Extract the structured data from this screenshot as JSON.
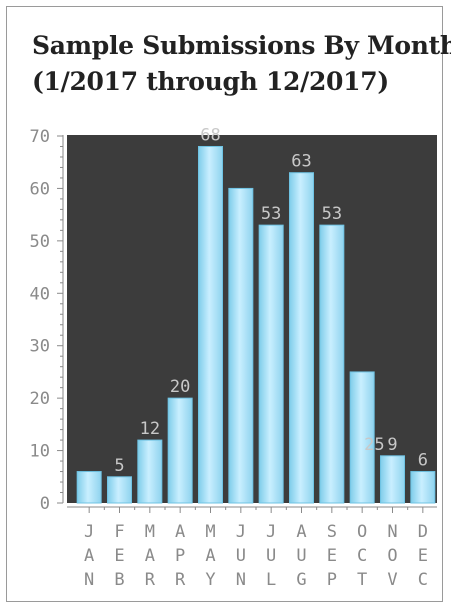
{
  "chart_data": {
    "type": "bar",
    "title_line1": "Sample Submissions By Month",
    "title_line2": "(1/2017 through 12/2017)",
    "categories": [
      "JAN",
      "FEB",
      "MAR",
      "APR",
      "MAY",
      "JUN",
      "JUL",
      "AUG",
      "SEP",
      "OCT",
      "NOV",
      "DEC"
    ],
    "values": [
      6,
      5,
      12,
      20,
      68,
      60,
      53,
      63,
      53,
      25,
      9,
      6
    ],
    "data_labels": [
      "",
      "5",
      "12",
      "20",
      "68",
      "",
      "53",
      "63",
      "53",
      "25",
      "9",
      "6"
    ],
    "yticks": [
      0,
      10,
      20,
      30,
      40,
      50,
      60,
      70
    ],
    "ylim": [
      0,
      70
    ],
    "grid": false,
    "legend": "none",
    "colors": {
      "plot_background": "#3c3c3c",
      "bar_fill": "#a9dff2",
      "bar_edge": "#6fc3e3",
      "axis": "#8a8a8a"
    }
  }
}
